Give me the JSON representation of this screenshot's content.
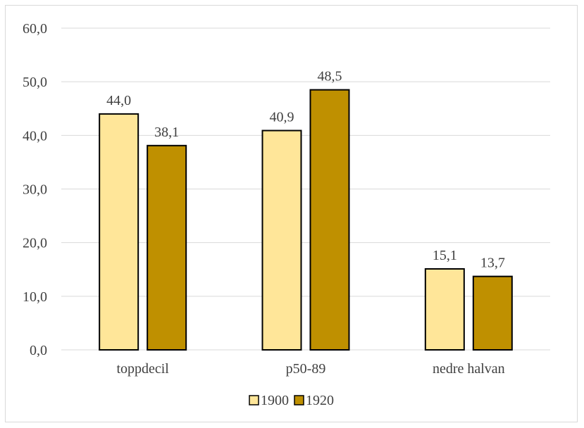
{
  "chart_data": {
    "type": "bar",
    "title": "",
    "xlabel": "",
    "ylabel": "",
    "categories": [
      "toppdecil",
      "p50-89",
      "nedre halvan"
    ],
    "series": [
      {
        "name": "1900",
        "values": [
          44.0,
          40.9,
          15.1
        ],
        "color": "#ffe699"
      },
      {
        "name": "1920",
        "values": [
          38.1,
          48.5,
          13.7
        ],
        "color": "#bf9000"
      }
    ],
    "data_labels": [
      [
        "44,0",
        "40,9",
        "15,1"
      ],
      [
        "38,1",
        "48,5",
        "13,7"
      ]
    ],
    "ylim": [
      0,
      60
    ],
    "yticks": [
      0,
      10,
      20,
      30,
      40,
      50,
      60
    ],
    "ytick_labels": [
      "0,0",
      "10,0",
      "20,0",
      "30,0",
      "40,0",
      "50,0",
      "60,0"
    ],
    "grid": true,
    "legend_position": "bottom",
    "colors": {
      "gridline": "#d9d9d9",
      "text": "#404040",
      "bar_outline": "#000000"
    }
  }
}
